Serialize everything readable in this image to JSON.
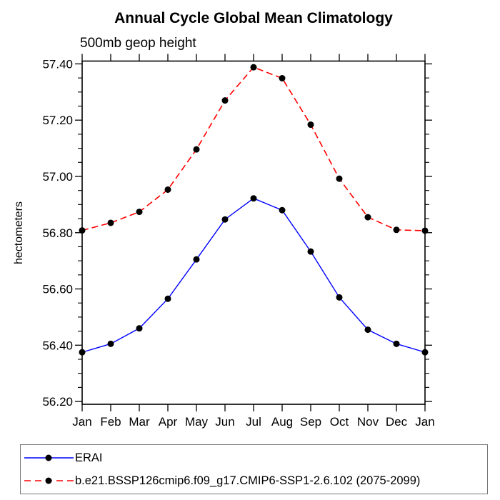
{
  "title": "Annual Cycle Global Mean Climatology",
  "subtitle": "500mb geop height",
  "ylabel": "hectometers",
  "legend": {
    "position": "bottom",
    "items": [
      {
        "label": "ERAI",
        "color": "#0000ff",
        "line_style": "solid",
        "marker_color": "#000000"
      },
      {
        "label": "b.e21.BSSP126cmip6.f09_g17.CMIP6-SSP1-2.6.102 (2075-2099)",
        "color": "#ff0000",
        "line_style": "dashed",
        "marker_color": "#000000"
      }
    ]
  },
  "chart_data": {
    "type": "line",
    "title": "Annual Cycle Global Mean Climatology",
    "subtitle": "500mb geop height",
    "ylabel": "hectometers",
    "xlabel": "",
    "categories": [
      "Jan",
      "Feb",
      "Mar",
      "Apr",
      "May",
      "Jun",
      "Jul",
      "Aug",
      "Sep",
      "Oct",
      "Nov",
      "Dec",
      "Jan"
    ],
    "series": [
      {
        "name": "ERAI",
        "color": "#0000ff",
        "line_style": "solid",
        "marker": "filled-circle",
        "marker_color": "#000000",
        "values": [
          56.375,
          56.405,
          56.46,
          56.565,
          56.705,
          56.847,
          56.922,
          56.88,
          56.733,
          56.57,
          56.455,
          56.405,
          56.375
        ]
      },
      {
        "name": "b.e21.BSSP126cmip6.f09_g17.CMIP6-SSP1-2.6.102 (2075-2099)",
        "color": "#ff0000",
        "line_style": "dashed",
        "marker": "filled-circle",
        "marker_color": "#000000",
        "values": [
          56.808,
          56.835,
          56.874,
          56.953,
          57.096,
          57.27,
          57.388,
          57.349,
          57.184,
          56.992,
          56.855,
          56.81,
          56.807
        ]
      }
    ],
    "ylim": [
      56.19,
      57.41
    ],
    "yticks_major": [
      56.2,
      56.4,
      56.6,
      56.8,
      57.0,
      57.2,
      57.4
    ],
    "ytick_decimals": 2,
    "yminor_step": 0.05,
    "grid": false,
    "legend_position": "bottom"
  }
}
